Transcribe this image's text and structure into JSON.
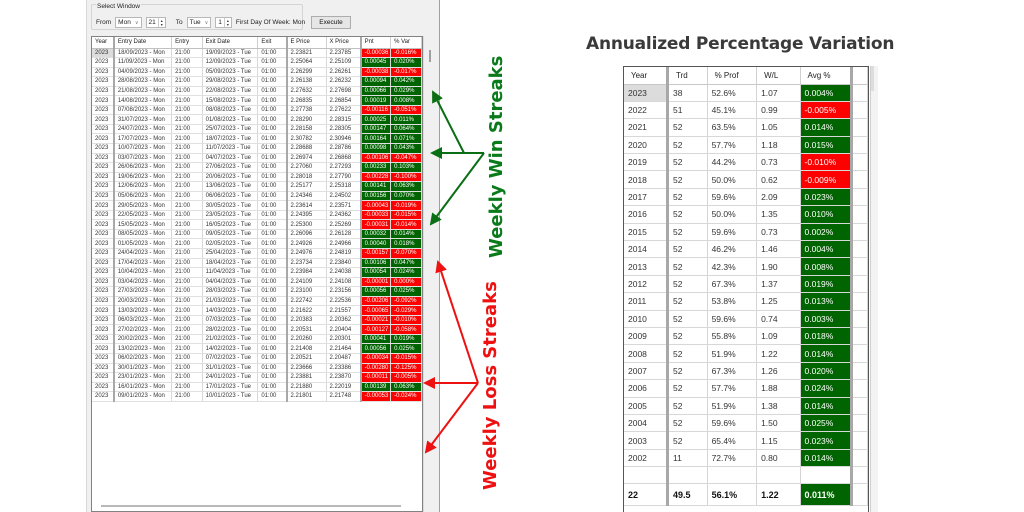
{
  "select_window": {
    "legend": "Select Window",
    "from_label": "From",
    "from_day": "Mon",
    "from_hour": "21",
    "to_label": "To",
    "to_day": "Tue",
    "to_hour": "1",
    "first_day_label": "First Day Of Week: Mon",
    "execute_label": "Execute"
  },
  "trades": {
    "columns": [
      "Year",
      "Entry Date",
      "Entry",
      "Exit Date",
      "Exit",
      "E Price",
      "X Price",
      "Pnt",
      "% Var"
    ],
    "rows": [
      {
        "year": "2023",
        "entry_date": "18/09/2023 - Mon",
        "entry": "21:00",
        "exit_date": "19/09/2023 - Tue",
        "exit": "01:00",
        "e_price": "2.23821",
        "x_price": "2.23785",
        "pnt": "-0.00036",
        "var": "-0.016%",
        "sign": "neg"
      },
      {
        "year": "2023",
        "entry_date": "11/09/2023 - Mon",
        "entry": "21:00",
        "exit_date": "12/09/2023 - Tue",
        "exit": "01:00",
        "e_price": "2.25064",
        "x_price": "2.25109",
        "pnt": "0.00045",
        "var": "0.020%",
        "sign": "pos"
      },
      {
        "year": "2023",
        "entry_date": "04/09/2023 - Mon",
        "entry": "21:00",
        "exit_date": "05/09/2023 - Tue",
        "exit": "01:00",
        "e_price": "2.26299",
        "x_price": "2.26261",
        "pnt": "-0.00038",
        "var": "-0.017%",
        "sign": "neg"
      },
      {
        "year": "2023",
        "entry_date": "28/08/2023 - Mon",
        "entry": "21:00",
        "exit_date": "29/08/2023 - Tue",
        "exit": "01:00",
        "e_price": "2.26138",
        "x_price": "2.26232",
        "pnt": "0.00094",
        "var": "0.042%",
        "sign": "pos"
      },
      {
        "year": "2023",
        "entry_date": "21/08/2023 - Mon",
        "entry": "21:00",
        "exit_date": "22/08/2023 - Tue",
        "exit": "01:00",
        "e_price": "2.27632",
        "x_price": "2.27698",
        "pnt": "0.00066",
        "var": "0.029%",
        "sign": "pos"
      },
      {
        "year": "2023",
        "entry_date": "14/08/2023 - Mon",
        "entry": "21:00",
        "exit_date": "15/08/2023 - Tue",
        "exit": "01:00",
        "e_price": "2.26835",
        "x_price": "2.26854",
        "pnt": "0.00019",
        "var": "0.008%",
        "sign": "pos"
      },
      {
        "year": "2023",
        "entry_date": "07/08/2023 - Mon",
        "entry": "21:00",
        "exit_date": "08/08/2023 - Tue",
        "exit": "01:00",
        "e_price": "2.27738",
        "x_price": "2.27622",
        "pnt": "-0.00116",
        "var": "-0.051%",
        "sign": "neg"
      },
      {
        "year": "2023",
        "entry_date": "31/07/2023 - Mon",
        "entry": "21:00",
        "exit_date": "01/08/2023 - Tue",
        "exit": "01:00",
        "e_price": "2.28290",
        "x_price": "2.28315",
        "pnt": "0.00025",
        "var": "0.011%",
        "sign": "pos"
      },
      {
        "year": "2023",
        "entry_date": "24/07/2023 - Mon",
        "entry": "21:00",
        "exit_date": "25/07/2023 - Tue",
        "exit": "01:00",
        "e_price": "2.28158",
        "x_price": "2.28305",
        "pnt": "0.00147",
        "var": "0.064%",
        "sign": "pos"
      },
      {
        "year": "2023",
        "entry_date": "17/07/2023 - Mon",
        "entry": "21:00",
        "exit_date": "18/07/2023 - Tue",
        "exit": "01:00",
        "e_price": "2.30782",
        "x_price": "2.30946",
        "pnt": "0.00164",
        "var": "0.071%",
        "sign": "pos"
      },
      {
        "year": "2023",
        "entry_date": "10/07/2023 - Mon",
        "entry": "21:00",
        "exit_date": "11/07/2023 - Tue",
        "exit": "01:00",
        "e_price": "2.28688",
        "x_price": "2.28786",
        "pnt": "0.00098",
        "var": "0.043%",
        "sign": "pos"
      },
      {
        "year": "2023",
        "entry_date": "03/07/2023 - Mon",
        "entry": "21:00",
        "exit_date": "04/07/2023 - Tue",
        "exit": "01:00",
        "e_price": "2.26974",
        "x_price": "2.26868",
        "pnt": "-0.00106",
        "var": "-0.047%",
        "sign": "neg"
      },
      {
        "year": "2023",
        "entry_date": "26/06/2023 - Mon",
        "entry": "21:00",
        "exit_date": "27/06/2023 - Tue",
        "exit": "01:00",
        "e_price": "2.27060",
        "x_price": "2.27293",
        "pnt": "0.00233",
        "var": "0.103%",
        "sign": "pos"
      },
      {
        "year": "2023",
        "entry_date": "19/06/2023 - Mon",
        "entry": "21:00",
        "exit_date": "20/06/2023 - Tue",
        "exit": "01:00",
        "e_price": "2.28018",
        "x_price": "2.27790",
        "pnt": "-0.00228",
        "var": "-0.100%",
        "sign": "neg"
      },
      {
        "year": "2023",
        "entry_date": "12/06/2023 - Mon",
        "entry": "21:00",
        "exit_date": "13/06/2023 - Tue",
        "exit": "01:00",
        "e_price": "2.25177",
        "x_price": "2.25318",
        "pnt": "0.00141",
        "var": "0.063%",
        "sign": "pos"
      },
      {
        "year": "2023",
        "entry_date": "05/06/2023 - Mon",
        "entry": "21:00",
        "exit_date": "06/06/2023 - Tue",
        "exit": "01:00",
        "e_price": "2.24346",
        "x_price": "2.24502",
        "pnt": "0.00156",
        "var": "0.070%",
        "sign": "pos"
      },
      {
        "year": "2023",
        "entry_date": "29/05/2023 - Mon",
        "entry": "21:00",
        "exit_date": "30/05/2023 - Tue",
        "exit": "01:00",
        "e_price": "2.23614",
        "x_price": "2.23571",
        "pnt": "-0.00043",
        "var": "-0.019%",
        "sign": "neg"
      },
      {
        "year": "2023",
        "entry_date": "22/05/2023 - Mon",
        "entry": "21:00",
        "exit_date": "23/05/2023 - Tue",
        "exit": "01:00",
        "e_price": "2.24395",
        "x_price": "2.24362",
        "pnt": "-0.00033",
        "var": "-0.015%",
        "sign": "neg"
      },
      {
        "year": "2023",
        "entry_date": "15/05/2023 - Mon",
        "entry": "21:00",
        "exit_date": "16/05/2023 - Tue",
        "exit": "01:00",
        "e_price": "2.25300",
        "x_price": "2.25269",
        "pnt": "-0.00031",
        "var": "-0.014%",
        "sign": "neg"
      },
      {
        "year": "2023",
        "entry_date": "08/05/2023 - Mon",
        "entry": "21:00",
        "exit_date": "09/05/2023 - Tue",
        "exit": "01:00",
        "e_price": "2.26096",
        "x_price": "2.26128",
        "pnt": "0.00032",
        "var": "0.014%",
        "sign": "pos"
      },
      {
        "year": "2023",
        "entry_date": "01/05/2023 - Mon",
        "entry": "21:00",
        "exit_date": "02/05/2023 - Tue",
        "exit": "01:00",
        "e_price": "2.24926",
        "x_price": "2.24966",
        "pnt": "0.00040",
        "var": "0.018%",
        "sign": "pos"
      },
      {
        "year": "2023",
        "entry_date": "24/04/2023 - Mon",
        "entry": "21:00",
        "exit_date": "25/04/2023 - Tue",
        "exit": "01:00",
        "e_price": "2.24976",
        "x_price": "2.24819",
        "pnt": "-0.00157",
        "var": "-0.070%",
        "sign": "neg"
      },
      {
        "year": "2023",
        "entry_date": "17/04/2023 - Mon",
        "entry": "21:00",
        "exit_date": "18/04/2023 - Tue",
        "exit": "01:00",
        "e_price": "2.23734",
        "x_price": "2.23840",
        "pnt": "0.00106",
        "var": "0.047%",
        "sign": "pos"
      },
      {
        "year": "2023",
        "entry_date": "10/04/2023 - Mon",
        "entry": "21:00",
        "exit_date": "11/04/2023 - Tue",
        "exit": "01:00",
        "e_price": "2.23984",
        "x_price": "2.24038",
        "pnt": "0.00054",
        "var": "0.024%",
        "sign": "pos"
      },
      {
        "year": "2023",
        "entry_date": "03/04/2023 - Mon",
        "entry": "21:00",
        "exit_date": "04/04/2023 - Tue",
        "exit": "01:00",
        "e_price": "2.24109",
        "x_price": "2.24108",
        "pnt": "-0.00001",
        "var": "0.000%",
        "sign": "neg"
      },
      {
        "year": "2023",
        "entry_date": "27/03/2023 - Mon",
        "entry": "21:00",
        "exit_date": "28/03/2023 - Tue",
        "exit": "01:00",
        "e_price": "2.23100",
        "x_price": "2.23156",
        "pnt": "0.00056",
        "var": "0.025%",
        "sign": "pos"
      },
      {
        "year": "2023",
        "entry_date": "20/03/2023 - Mon",
        "entry": "21:00",
        "exit_date": "21/03/2023 - Tue",
        "exit": "01:00",
        "e_price": "2.22742",
        "x_price": "2.22536",
        "pnt": "-0.00206",
        "var": "-0.092%",
        "sign": "neg"
      },
      {
        "year": "2023",
        "entry_date": "13/03/2023 - Mon",
        "entry": "21:00",
        "exit_date": "14/03/2023 - Tue",
        "exit": "01:00",
        "e_price": "2.21622",
        "x_price": "2.21557",
        "pnt": "-0.00065",
        "var": "-0.029%",
        "sign": "neg"
      },
      {
        "year": "2023",
        "entry_date": "06/03/2023 - Mon",
        "entry": "21:00",
        "exit_date": "07/03/2023 - Tue",
        "exit": "01:00",
        "e_price": "2.20383",
        "x_price": "2.20362",
        "pnt": "-0.00021",
        "var": "-0.010%",
        "sign": "neg"
      },
      {
        "year": "2023",
        "entry_date": "27/02/2023 - Mon",
        "entry": "21:00",
        "exit_date": "28/02/2023 - Tue",
        "exit": "01:00",
        "e_price": "2.20531",
        "x_price": "2.20404",
        "pnt": "-0.00127",
        "var": "-0.058%",
        "sign": "neg"
      },
      {
        "year": "2023",
        "entry_date": "20/02/2023 - Mon",
        "entry": "21:00",
        "exit_date": "21/02/2023 - Tue",
        "exit": "01:00",
        "e_price": "2.20260",
        "x_price": "2.20301",
        "pnt": "0.00041",
        "var": "0.019%",
        "sign": "pos"
      },
      {
        "year": "2023",
        "entry_date": "13/02/2023 - Mon",
        "entry": "21:00",
        "exit_date": "14/02/2023 - Tue",
        "exit": "01:00",
        "e_price": "2.21408",
        "x_price": "2.21464",
        "pnt": "0.00056",
        "var": "0.025%",
        "sign": "pos"
      },
      {
        "year": "2023",
        "entry_date": "06/02/2023 - Mon",
        "entry": "21:00",
        "exit_date": "07/02/2023 - Tue",
        "exit": "01:00",
        "e_price": "2.20521",
        "x_price": "2.20487",
        "pnt": "-0.00034",
        "var": "-0.015%",
        "sign": "neg"
      },
      {
        "year": "2023",
        "entry_date": "30/01/2023 - Mon",
        "entry": "21:00",
        "exit_date": "31/01/2023 - Tue",
        "exit": "01:00",
        "e_price": "2.23666",
        "x_price": "2.23386",
        "pnt": "-0.00280",
        "var": "-0.125%",
        "sign": "neg"
      },
      {
        "year": "2023",
        "entry_date": "23/01/2023 - Mon",
        "entry": "21:00",
        "exit_date": "24/01/2023 - Tue",
        "exit": "01:00",
        "e_price": "2.23881",
        "x_price": "2.23870",
        "pnt": "-0.00011",
        "var": "-0.005%",
        "sign": "neg"
      },
      {
        "year": "2023",
        "entry_date": "16/01/2023 - Mon",
        "entry": "21:00",
        "exit_date": "17/01/2023 - Tue",
        "exit": "01:00",
        "e_price": "2.21880",
        "x_price": "2.22019",
        "pnt": "0.00139",
        "var": "0.063%",
        "sign": "pos"
      },
      {
        "year": "2023",
        "entry_date": "09/01/2023 - Mon",
        "entry": "21:00",
        "exit_date": "10/01/2023 - Tue",
        "exit": "01:00",
        "e_price": "2.21801",
        "x_price": "2.21748",
        "pnt": "-0.00053",
        "var": "-0.024%",
        "sign": "neg"
      }
    ]
  },
  "annotations": {
    "win_label": "Weekly Win Streaks",
    "loss_label": "Weekly Loss Streaks",
    "win_color": "#0a7a1a",
    "loss_color": "#ee1111"
  },
  "annual": {
    "title": "Annualized Percentage Variation",
    "columns": [
      "Year",
      "Trd",
      "% Prof",
      "W/L",
      "Avg %"
    ],
    "rows": [
      {
        "year": "2023",
        "trd": "38",
        "prof": "52.6%",
        "wl": "1.07",
        "avg": "0.004%",
        "sign": "pos"
      },
      {
        "year": "2022",
        "trd": "51",
        "prof": "45.1%",
        "wl": "0.99",
        "avg": "-0.005%",
        "sign": "neg"
      },
      {
        "year": "2021",
        "trd": "52",
        "prof": "63.5%",
        "wl": "1.05",
        "avg": "0.014%",
        "sign": "pos"
      },
      {
        "year": "2020",
        "trd": "52",
        "prof": "57.7%",
        "wl": "1.18",
        "avg": "0.015%",
        "sign": "pos"
      },
      {
        "year": "2019",
        "trd": "52",
        "prof": "44.2%",
        "wl": "0.73",
        "avg": "-0.010%",
        "sign": "neg"
      },
      {
        "year": "2018",
        "trd": "52",
        "prof": "50.0%",
        "wl": "0.62",
        "avg": "-0.009%",
        "sign": "neg"
      },
      {
        "year": "2017",
        "trd": "52",
        "prof": "59.6%",
        "wl": "2.09",
        "avg": "0.023%",
        "sign": "pos"
      },
      {
        "year": "2016",
        "trd": "52",
        "prof": "50.0%",
        "wl": "1.35",
        "avg": "0.010%",
        "sign": "pos"
      },
      {
        "year": "2015",
        "trd": "52",
        "prof": "59.6%",
        "wl": "0.73",
        "avg": "0.002%",
        "sign": "pos"
      },
      {
        "year": "2014",
        "trd": "52",
        "prof": "46.2%",
        "wl": "1.46",
        "avg": "0.004%",
        "sign": "pos"
      },
      {
        "year": "2013",
        "trd": "52",
        "prof": "42.3%",
        "wl": "1.90",
        "avg": "0.008%",
        "sign": "pos"
      },
      {
        "year": "2012",
        "trd": "52",
        "prof": "67.3%",
        "wl": "1.37",
        "avg": "0.019%",
        "sign": "pos"
      },
      {
        "year": "2011",
        "trd": "52",
        "prof": "53.8%",
        "wl": "1.25",
        "avg": "0.013%",
        "sign": "pos"
      },
      {
        "year": "2010",
        "trd": "52",
        "prof": "59.6%",
        "wl": "0.74",
        "avg": "0.003%",
        "sign": "pos"
      },
      {
        "year": "2009",
        "trd": "52",
        "prof": "55.8%",
        "wl": "1.09",
        "avg": "0.018%",
        "sign": "pos"
      },
      {
        "year": "2008",
        "trd": "52",
        "prof": "51.9%",
        "wl": "1.22",
        "avg": "0.014%",
        "sign": "pos"
      },
      {
        "year": "2007",
        "trd": "52",
        "prof": "67.3%",
        "wl": "1.26",
        "avg": "0.020%",
        "sign": "pos"
      },
      {
        "year": "2006",
        "trd": "52",
        "prof": "57.7%",
        "wl": "1.88",
        "avg": "0.024%",
        "sign": "pos"
      },
      {
        "year": "2005",
        "trd": "52",
        "prof": "51.9%",
        "wl": "1.38",
        "avg": "0.014%",
        "sign": "pos"
      },
      {
        "year": "2004",
        "trd": "52",
        "prof": "59.6%",
        "wl": "1.50",
        "avg": "0.025%",
        "sign": "pos"
      },
      {
        "year": "2003",
        "trd": "52",
        "prof": "65.4%",
        "wl": "1.15",
        "avg": "0.023%",
        "sign": "pos"
      },
      {
        "year": "2002",
        "trd": "11",
        "prof": "72.7%",
        "wl": "0.80",
        "avg": "0.014%",
        "sign": "pos"
      }
    ],
    "total": {
      "year": "22",
      "trd": "49.5",
      "prof": "56.1%",
      "wl": "1.22",
      "avg": "0.011%",
      "sign": "pos"
    }
  },
  "colors": {
    "positive": "#006400",
    "negative": "#ff0000"
  }
}
